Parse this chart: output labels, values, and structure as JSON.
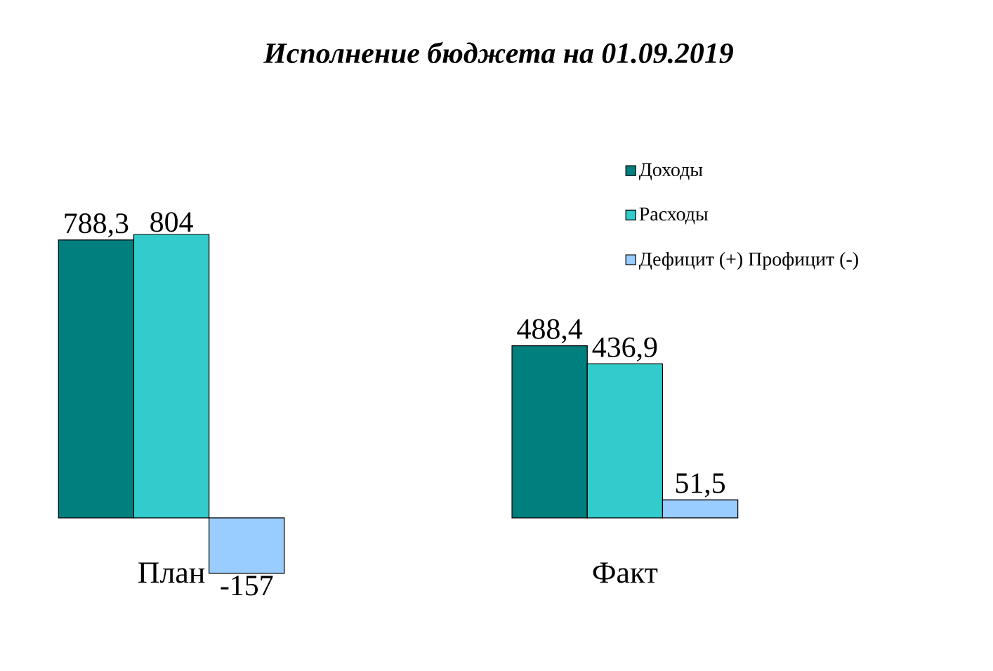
{
  "chart_data": {
    "type": "bar",
    "title": "Исполнение бюджета на 01.09.2019",
    "categories": [
      "План",
      "Факт"
    ],
    "series": [
      {
        "name": "Доходы",
        "color": "#007f7f",
        "values": [
          788.3,
          488.4
        ],
        "value_labels": [
          "788,3",
          "488,4"
        ]
      },
      {
        "name": "Расходы",
        "color": "#33cccc",
        "values": [
          804,
          436.9
        ],
        "value_labels": [
          "804",
          "436,9"
        ]
      },
      {
        "name": "Дефицит (+) Профицит (-)",
        "color": "#99ccff",
        "values": [
          -157,
          51.5
        ],
        "value_labels": [
          "-157",
          "51,5"
        ]
      }
    ],
    "legend": "top right"
  }
}
